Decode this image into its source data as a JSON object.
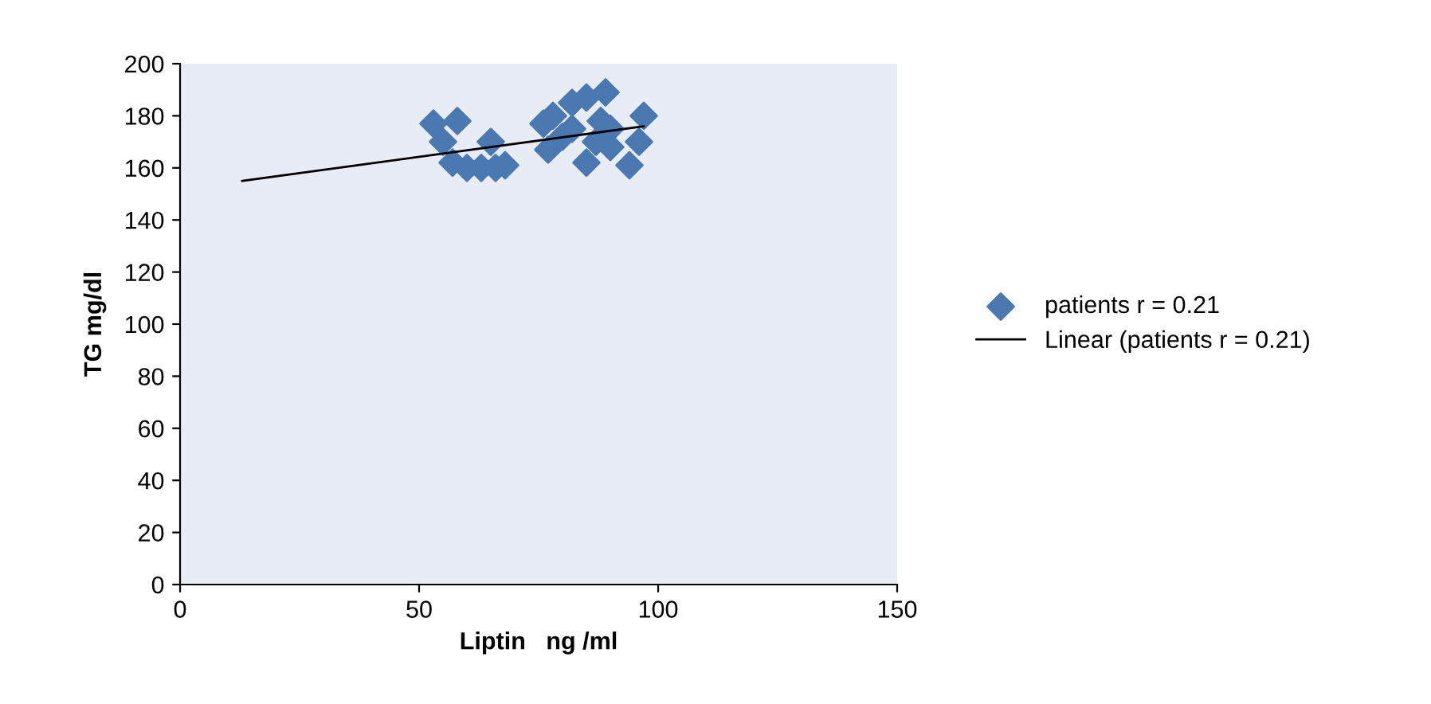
{
  "chart_data": {
    "type": "scatter",
    "xlabel": "Liptin   ng /ml",
    "ylabel": "TG mg/dl",
    "xlim": [
      0,
      150
    ],
    "xticks": [
      0,
      50,
      100,
      150
    ],
    "ylim": [
      0,
      200
    ],
    "yticks": [
      0,
      20,
      40,
      60,
      80,
      100,
      120,
      140,
      160,
      180,
      200
    ],
    "grid": false,
    "legend": "right",
    "series": [
      {
        "name": "patients r = 0.21",
        "color": "#4a78b0",
        "marker": "diamond",
        "x": [
          53,
          58,
          55,
          57,
          60,
          63,
          65,
          66,
          68,
          76,
          78,
          77,
          80,
          82,
          85,
          89,
          88,
          90,
          85,
          94,
          96,
          97,
          82,
          87,
          90
        ],
        "values": [
          177,
          178,
          170,
          162,
          160,
          160,
          170,
          160,
          161,
          177,
          180,
          167,
          172,
          175,
          187,
          189,
          178,
          175,
          162,
          161,
          170,
          180,
          185,
          170,
          168
        ]
      },
      {
        "name": "Linear (patients r = 0.21)",
        "type": "line",
        "color": "#000000",
        "line_style": "solid",
        "x": [
          13,
          97
        ],
        "values": [
          155,
          176
        ]
      }
    ]
  }
}
